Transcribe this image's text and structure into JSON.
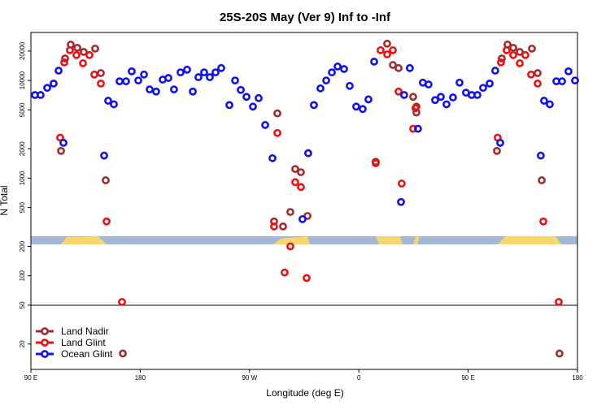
{
  "chart_data": {
    "type": "scatter",
    "title": "25S-20S May (Ver 9)   Inf to -Inf",
    "xlabel": "Longitude (deg E)",
    "ylabel": "N Total",
    "yscale": "log",
    "xlim": [
      90,
      540
    ],
    "ylim": [
      11,
      31000
    ],
    "xticks": [
      {
        "value": 90,
        "label": "90 E"
      },
      180,
      {
        "value": 270,
        "label": "90 W"
      },
      {
        "value": 360,
        "label": "0"
      },
      {
        "value": 450,
        "label": "90 E"
      },
      {
        "value": 540,
        "label": "180"
      }
    ],
    "yticks": [
      20,
      50,
      100,
      200,
      500,
      1000,
      2000,
      5000,
      10000,
      20000
    ],
    "legend": "lower left",
    "series": [
      {
        "name": "Land Nadir",
        "color": "#a02c2c",
        "x": [
          114.8,
          118.1,
          122.8,
          128.2,
          133.5,
          142.9,
          147.6,
          151.6,
          165.7,
          290.2,
          292.9,
          297.6,
          303.6,
          307.6,
          312.3,
          317.7,
          373.9,
          383.3,
          388.0,
          392.7,
          404.7,
          407.4,
          407.4,
          473.7,
          477.7,
          482.4,
          487.1,
          492.5,
          502.5,
          507.2,
          510.6,
          525.2
        ],
        "values": [
          1900,
          16800,
          23300,
          21600,
          19600,
          21200,
          11900,
          950,
          16,
          360,
          4600,
          320,
          450,
          1240,
          1150,
          410,
          1470,
          23800,
          14400,
          13400,
          6800,
          5400,
          4700,
          1900,
          16800,
          23300,
          21600,
          19600,
          21200,
          11900,
          950,
          16
        ]
      },
      {
        "name": "Land Glint",
        "color": "#ee1111",
        "x": [
          114.1,
          117.5,
          122.1,
          127.5,
          132.9,
          138.2,
          142.2,
          147.6,
          152.3,
          165.0,
          290.2,
          292.9,
          298.9,
          303.6,
          307.6,
          312.3,
          317.0,
          373.9,
          377.9,
          383.3,
          388.0,
          392.7,
          395.3,
          404.7,
          406.7,
          474.3,
          477.0,
          481.7,
          487.1,
          492.5,
          497.1,
          501.8,
          507.2,
          511.9,
          524.6
        ],
        "values": [
          2600,
          15300,
          20400,
          18200,
          15000,
          18200,
          11500,
          9300,
          360,
          54,
          320,
          2900,
          108,
          200,
          910,
          810,
          95,
          1420,
          20400,
          18500,
          20400,
          7700,
          880,
          3200,
          5200,
          2600,
          15300,
          20400,
          18200,
          15000,
          18200,
          11500,
          9300,
          360,
          54
        ]
      },
      {
        "name": "Ocean Glint",
        "color": "#1111ee",
        "x": [
          93.3,
          98.0,
          103.4,
          108.7,
          112.8,
          116.8,
          150.3,
          153.6,
          158.3,
          163.0,
          168.3,
          173.0,
          178.4,
          183.1,
          187.8,
          193.1,
          198.5,
          203.2,
          207.8,
          213.2,
          218.6,
          223.3,
          227.9,
          232.6,
          237.3,
          242.0,
          246.7,
          253.4,
          258.1,
          262.8,
          267.5,
          272.8,
          277.5,
          282.9,
          288.9,
          313.6,
          318.3,
          323.0,
          328.4,
          333.1,
          337.8,
          342.5,
          347.8,
          352.5,
          357.8,
          363.2,
          367.9,
          372.6,
          394.7,
          397.3,
          402.0,
          408.7,
          412.7,
          417.4,
          422.8,
          427.5,
          432.2,
          437.5,
          442.9,
          448.2,
          452.9,
          457.6,
          462.3,
          467.7,
          472.3,
          476.4,
          509.8,
          512.5,
          517.2,
          522.6,
          527.3,
          532.6,
          538.0
        ],
        "values": [
          7100,
          7100,
          8400,
          9300,
          12600,
          2300,
          1700,
          6200,
          5700,
          9800,
          9800,
          12400,
          10000,
          11500,
          8100,
          7700,
          10200,
          10600,
          8100,
          12100,
          12900,
          7700,
          10800,
          12100,
          10800,
          12100,
          13400,
          5600,
          10000,
          8000,
          6800,
          5400,
          6600,
          3500,
          1600,
          380,
          1800,
          5600,
          8300,
          10000,
          12100,
          13900,
          13100,
          8800,
          5400,
          5100,
          6400,
          15600,
          570,
          7100,
          13400,
          3200,
          9500,
          9100,
          6300,
          6800,
          5700,
          6700,
          9500,
          7500,
          7100,
          7100,
          8400,
          9300,
          12600,
          2300,
          1700,
          6200,
          5700,
          9800,
          9800,
          12400,
          10000
        ]
      }
    ]
  }
}
